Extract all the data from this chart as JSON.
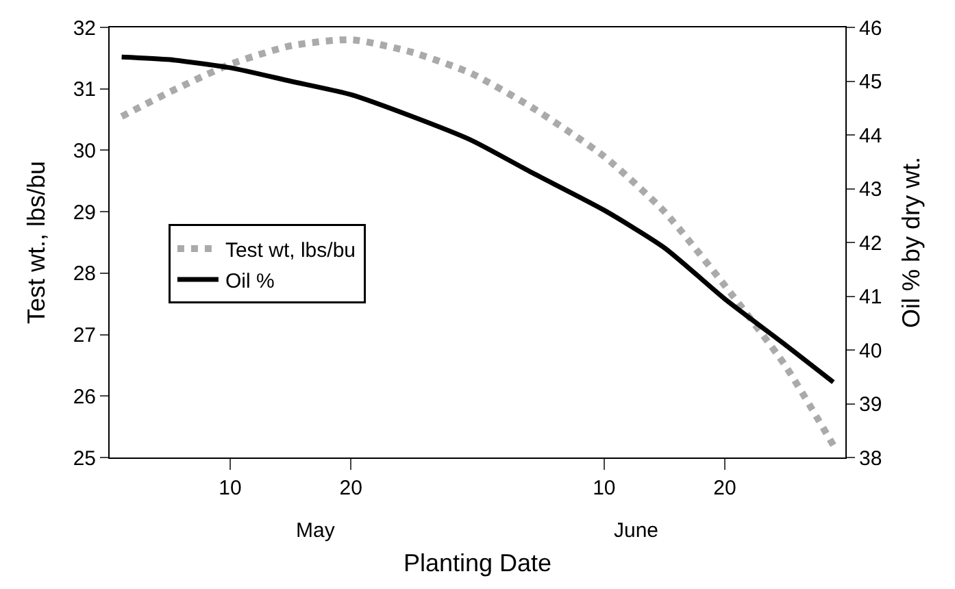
{
  "chart_data": {
    "type": "line",
    "xlabel": "Planting Date",
    "ylabel": "Test wt., lbs/bu",
    "y2label": "Oil % by dry wt.",
    "x": [
      "--05-01",
      "--05-05",
      "--05-10",
      "--05-15",
      "--05-20",
      "--05-25",
      "--05-30",
      "--06-04",
      "--06-10",
      "--06-15",
      "--06-20",
      "--06-25",
      "--06-29"
    ],
    "series": [
      {
        "name": "Test wt, lbs/bu",
        "color": "#aaaaaa",
        "line_style": "dotted",
        "values": [
          30.55,
          30.95,
          31.4,
          31.7,
          31.8,
          31.6,
          31.25,
          30.7,
          29.9,
          29.0,
          27.8,
          26.5,
          25.2
        ]
      },
      {
        "name": "Oil %",
        "color": "#000000",
        "line_style": "solid",
        "axis": "y2",
        "values": [
          45.45,
          45.4,
          45.25,
          45.0,
          44.75,
          44.35,
          43.9,
          43.3,
          42.6,
          41.9,
          40.95,
          40.1,
          39.4
        ]
      }
    ],
    "xlim": [
      "--04-30",
      "--06-30"
    ],
    "xticks": [
      {
        "value": "--05-10",
        "label": "10"
      },
      {
        "value": "--05-20",
        "label": "20"
      },
      {
        "value": "--06-10",
        "label": "10"
      },
      {
        "value": "--06-20",
        "label": "20"
      }
    ],
    "ylim": [
      25,
      32
    ],
    "yticks": [
      25,
      26,
      27,
      28,
      29,
      30,
      31,
      32
    ],
    "y2lim": [
      38,
      46
    ],
    "y2ticks": [
      38,
      39,
      40,
      41,
      42,
      43,
      44,
      45,
      46
    ],
    "annotations": [
      "May",
      "June"
    ],
    "legend": "center left",
    "marker": "none"
  }
}
